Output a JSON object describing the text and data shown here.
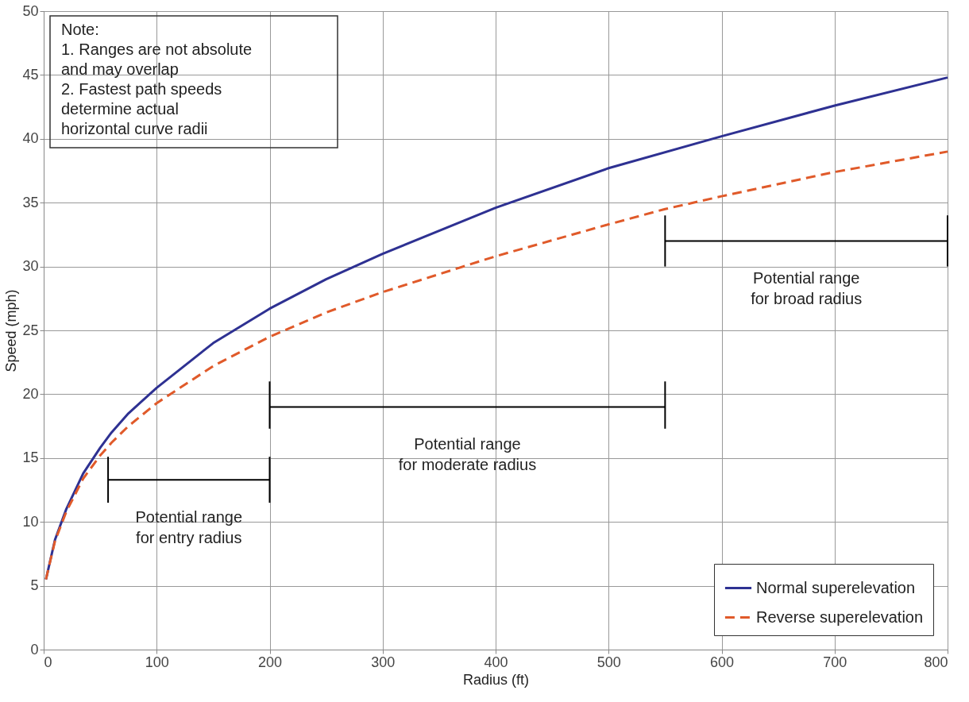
{
  "chart_data": {
    "type": "line",
    "xlabel": "Radius (ft)",
    "ylabel": "Speed (mph)",
    "xlim": [
      0,
      800
    ],
    "ylim": [
      0,
      50
    ],
    "xticks": [
      0,
      100,
      200,
      300,
      400,
      500,
      600,
      700,
      800
    ],
    "yticks": [
      0,
      5,
      10,
      15,
      20,
      25,
      30,
      35,
      40,
      45,
      50
    ],
    "grid": true,
    "legend": "bottom right",
    "series": [
      {
        "name": "Normal superelevation",
        "color": "#2e3192",
        "line_style": "solid",
        "x": [
          2,
          10,
          20,
          35,
          50,
          60,
          75,
          100,
          150,
          200,
          250,
          300,
          400,
          500,
          600,
          700,
          800
        ],
        "values": [
          5.5,
          8.6,
          11,
          13.8,
          15.8,
          17,
          18.5,
          20.5,
          24,
          26.7,
          29,
          31,
          34.6,
          37.7,
          40.2,
          42.6,
          44.8
        ]
      },
      {
        "name": "Reverse superelevation",
        "color": "#e05a2a",
        "line_style": "dashed",
        "x": [
          2,
          10,
          20,
          35,
          50,
          60,
          75,
          100,
          150,
          200,
          250,
          300,
          400,
          500,
          550,
          600,
          700,
          800
        ],
        "values": [
          5.5,
          8.5,
          10.8,
          13.4,
          15.2,
          16.2,
          17.5,
          19.3,
          22.2,
          24.5,
          26.4,
          28,
          30.8,
          33.3,
          34.5,
          35.5,
          37.4,
          39
        ]
      },
      {
        "color": "#000000",
        "line_style": "solid",
        "x": [
          57,
          128.5,
          200
        ],
        "values": [
          13.3,
          13.3,
          13.3
        ],
        "errors": [
          [
            11.5,
            15.1
          ],
          null,
          [
            11.5,
            15.1
          ]
        ]
      },
      {
        "color": "#000000",
        "line_style": "solid",
        "x": [
          200,
          375,
          550
        ],
        "values": [
          19,
          19,
          19
        ],
        "errors": [
          [
            17.3,
            21
          ],
          null,
          [
            17.3,
            21
          ]
        ]
      },
      {
        "color": "#000000",
        "line_style": "solid",
        "x": [
          550,
          675,
          800
        ],
        "values": [
          32,
          32,
          32
        ],
        "errors": [
          [
            30,
            34
          ],
          null,
          [
            30,
            34
          ]
        ]
      }
    ],
    "annotations": [
      "Note:\n1. Ranges are not absolute\n    and may overlap\n2. Fastest path speeds\n    determine actual\n    horizontal curve radii",
      {
        "text": "Potential range\nfor entry radius",
        "x": 128.5,
        "y": 13.3
      },
      {
        "text": "Potential range\nfor moderate radius",
        "x": 375,
        "y": 19
      },
      {
        "text": "Potential range\nfor broad radius",
        "x": 675,
        "y": 32
      }
    ]
  }
}
